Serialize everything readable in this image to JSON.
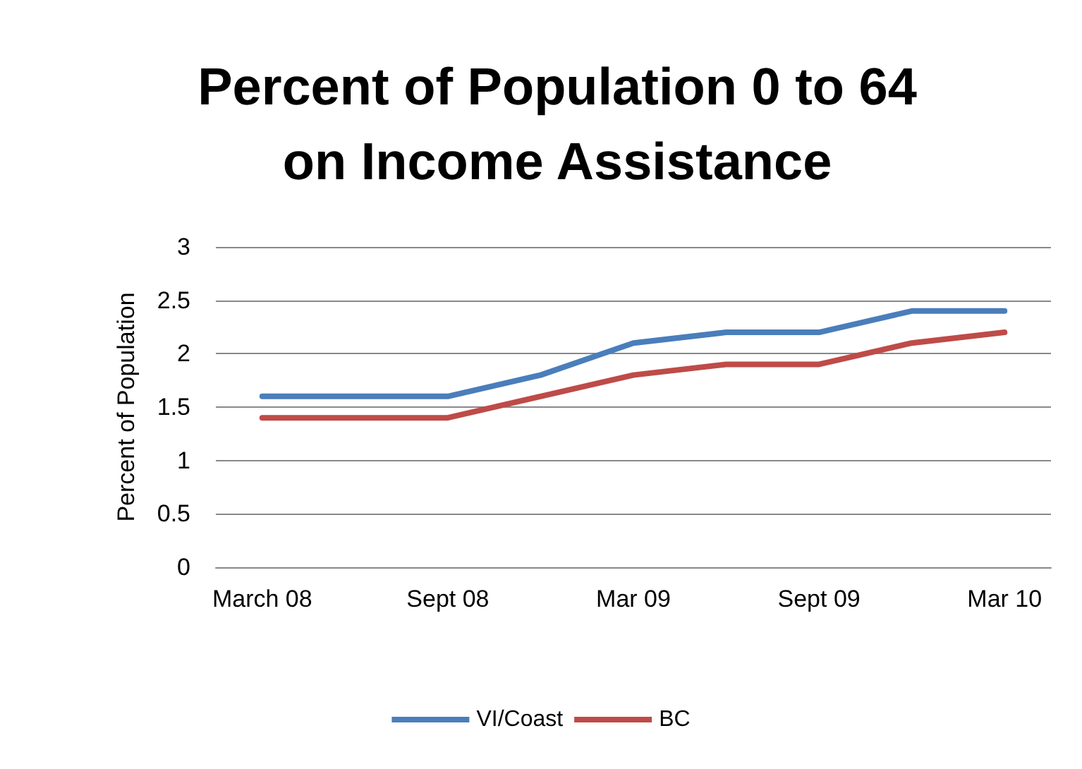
{
  "chart_data": {
    "type": "line",
    "title": "Percent of Population 0 to 64\non Income Assistance",
    "ylabel": "Percent of Population",
    "categories": [
      "March 08",
      null,
      "Sept 08",
      null,
      "Mar 09",
      null,
      "Sept 09",
      null,
      "Mar 10"
    ],
    "series": [
      {
        "name": "VI/Coast",
        "color": "#4a7ebb",
        "values": [
          1.6,
          1.6,
          1.6,
          1.8,
          2.1,
          2.2,
          2.2,
          2.4,
          2.4
        ]
      },
      {
        "name": "BC",
        "color": "#be4b48",
        "values": [
          1.4,
          1.4,
          1.4,
          1.6,
          1.8,
          1.9,
          1.9,
          2.1,
          2.2
        ]
      }
    ],
    "ylim": [
      0,
      3
    ],
    "yticks": [
      0,
      0.5,
      1,
      1.5,
      2,
      2.5,
      3
    ],
    "grid": "y",
    "legend": "bottom",
    "marker": "none",
    "line_style": "solid"
  }
}
